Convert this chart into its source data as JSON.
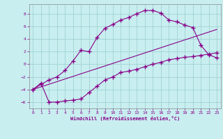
{
  "xlabel": "Windchill (Refroidissement éolien,°C)",
  "xlim": [
    -0.5,
    23.5
  ],
  "ylim": [
    -7.0,
    9.5
  ],
  "yticks": [
    -6,
    -4,
    -2,
    0,
    2,
    4,
    6,
    8
  ],
  "xticks": [
    0,
    1,
    2,
    3,
    4,
    5,
    6,
    7,
    8,
    9,
    10,
    11,
    12,
    13,
    14,
    15,
    16,
    17,
    18,
    19,
    20,
    21,
    22,
    23
  ],
  "bg_color": "#c8eef0",
  "line_color": "#880088",
  "grid_color": "#99cccc",
  "line1_x": [
    0,
    1,
    2,
    3,
    4,
    5,
    6,
    7,
    8,
    9,
    10,
    11,
    12,
    13,
    14,
    15,
    16,
    17,
    18,
    19,
    20,
    21,
    22,
    23
  ],
  "line1_y": [
    -4.0,
    -3.0,
    -6.0,
    -6.0,
    -5.8,
    -5.7,
    -5.5,
    -4.5,
    -3.5,
    -2.5,
    -2.0,
    -1.3,
    -1.1,
    -0.8,
    -0.4,
    0.0,
    0.3,
    0.7,
    0.9,
    1.1,
    1.2,
    1.4,
    1.6,
    1.8
  ],
  "line2_x": [
    0,
    1,
    2,
    3,
    4,
    5,
    6,
    7,
    8,
    9,
    10,
    11,
    12,
    13,
    14,
    15,
    16,
    17,
    18,
    19,
    20,
    21,
    22,
    23
  ],
  "line2_y": [
    -4.0,
    -3.2,
    -2.5,
    -2.0,
    -1.0,
    0.5,
    2.2,
    2.0,
    4.2,
    5.7,
    6.3,
    7.0,
    7.4,
    8.0,
    8.5,
    8.5,
    8.1,
    7.0,
    6.7,
    6.2,
    5.8,
    3.0,
    1.5,
    1.0
  ],
  "line3_x": [
    0,
    23
  ],
  "line3_y": [
    -4.0,
    5.5
  ]
}
